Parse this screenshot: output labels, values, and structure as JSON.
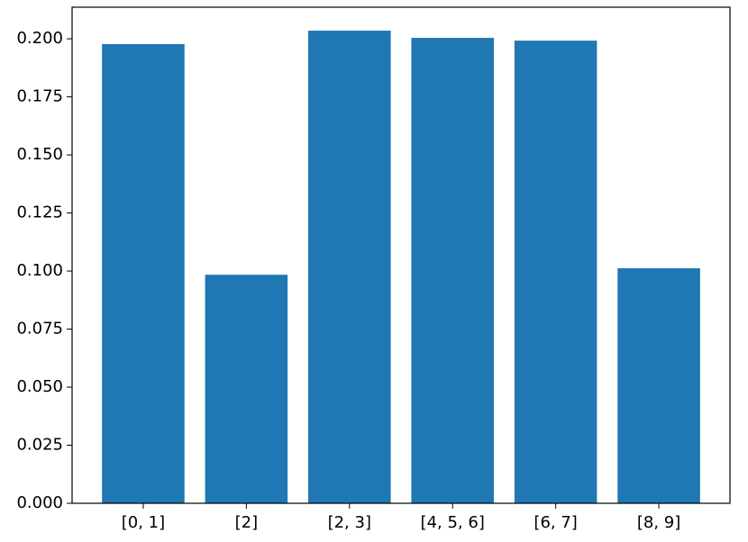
{
  "chart_data": {
    "type": "bar",
    "categories": [
      "[0, 1]",
      "[2]",
      "[2, 3]",
      "[4, 5, 6]",
      "[6, 7]",
      "[8, 9]"
    ],
    "values": [
      0.1977,
      0.0984,
      0.2035,
      0.2004,
      0.1992,
      0.1012
    ],
    "color": "#1f77b4",
    "ylim": [
      0,
      0.2136
    ],
    "yticks": [
      {
        "value": 0,
        "label": "0.000"
      },
      {
        "value": 0.025,
        "label": "0.025"
      },
      {
        "value": 0.05,
        "label": "0.050"
      },
      {
        "value": 0.075,
        "label": "0.075"
      },
      {
        "value": 0.1,
        "label": "0.100"
      },
      {
        "value": 0.125,
        "label": "0.125"
      },
      {
        "value": 0.15,
        "label": "0.150"
      },
      {
        "value": 0.175,
        "label": "0.175"
      },
      {
        "value": 0.2,
        "label": "0.200"
      }
    ],
    "grid": false
  }
}
